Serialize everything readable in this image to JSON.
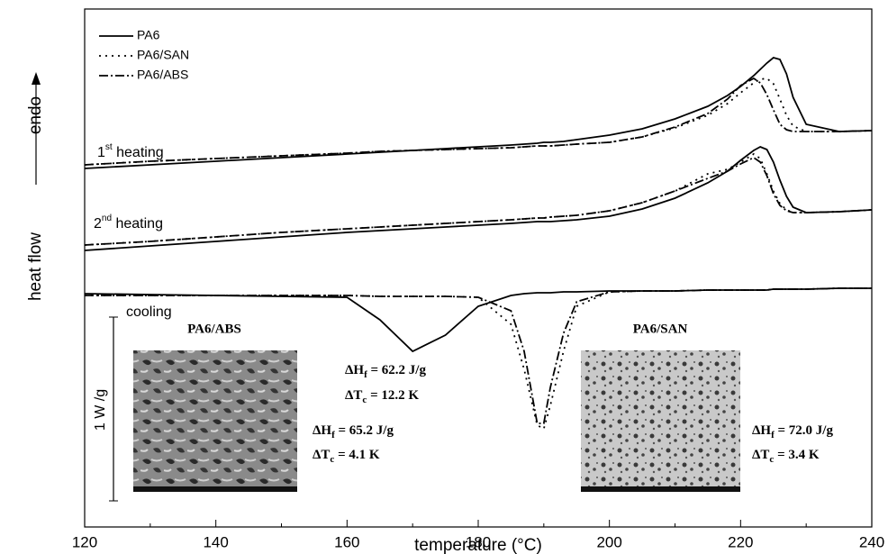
{
  "chart_data": {
    "type": "line",
    "xlabel": "temperature (°C)",
    "ylabel": "heat flow",
    "direction_label": "endo",
    "scale_label": "1 W /g",
    "xlim": [
      120,
      240
    ],
    "xticks": [
      120,
      140,
      160,
      180,
      200,
      220,
      240
    ],
    "xminorticks": [
      130,
      150,
      170,
      190,
      210,
      230
    ],
    "ylim": [
      0,
      2.875
    ],
    "x": [
      120,
      130,
      140,
      150,
      160,
      165,
      170,
      175,
      180,
      185,
      187,
      189,
      190,
      191,
      193,
      195,
      200,
      205,
      210,
      215,
      218,
      220,
      222,
      223,
      224,
      225,
      226,
      227,
      228,
      230,
      235,
      240
    ],
    "curve_labels": [
      {
        "main": "1",
        "sup": "st",
        "after": " heating"
      },
      {
        "main": "2",
        "sup": "nd",
        "after": " heating"
      },
      {
        "main": "cooling",
        "sup": "",
        "after": ""
      }
    ],
    "series": [
      {
        "name": "PA6",
        "color": "#000000",
        "dash": "solid",
        "curves": [
          [
            1.99,
            2.01,
            2.03,
            2.05,
            2.07,
            2.08,
            2.09,
            2.1,
            2.11,
            2.12,
            2.125,
            2.13,
            2.135,
            2.135,
            2.14,
            2.15,
            2.175,
            2.21,
            2.265,
            2.335,
            2.395,
            2.445,
            2.505,
            2.54,
            2.575,
            2.605,
            2.595,
            2.515,
            2.385,
            2.235,
            2.195,
            2.2
          ],
          [
            1.535,
            1.56,
            1.585,
            1.61,
            1.635,
            1.645,
            1.655,
            1.665,
            1.675,
            1.685,
            1.69,
            1.695,
            1.695,
            1.695,
            1.7,
            1.705,
            1.725,
            1.765,
            1.825,
            1.91,
            1.975,
            2.035,
            2.09,
            2.11,
            2.095,
            2.025,
            1.925,
            1.835,
            1.775,
            1.745,
            1.75,
            1.76
          ],
          [
            1.295,
            1.29,
            1.285,
            1.28,
            1.275,
            1.15,
            0.975,
            1.065,
            1.225,
            1.285,
            1.295,
            1.3,
            1.3,
            1.3,
            1.305,
            1.305,
            1.31,
            1.31,
            1.31,
            1.315,
            1.315,
            1.315,
            1.315,
            1.315,
            1.315,
            1.32,
            1.32,
            1.32,
            1.32,
            1.32,
            1.325,
            1.325
          ]
        ]
      },
      {
        "name": "PA6/SAN",
        "color": "#000000",
        "dash": "dot",
        "curves": [
          [
            2.01,
            2.03,
            2.045,
            2.06,
            2.075,
            2.085,
            2.09,
            2.095,
            2.1,
            2.105,
            2.11,
            2.115,
            2.115,
            2.115,
            2.12,
            2.125,
            2.135,
            2.165,
            2.215,
            2.285,
            2.35,
            2.41,
            2.465,
            2.485,
            2.49,
            2.46,
            2.375,
            2.285,
            2.225,
            2.195,
            2.195,
            2.2
          ],
          [
            1.565,
            1.585,
            1.61,
            1.635,
            1.655,
            1.665,
            1.675,
            1.685,
            1.695,
            1.705,
            1.71,
            1.715,
            1.715,
            1.72,
            1.725,
            1.73,
            1.755,
            1.8,
            1.865,
            1.96,
            1.985,
            2.025,
            2.07,
            2.045,
            1.96,
            1.865,
            1.795,
            1.76,
            1.745,
            1.745,
            1.75,
            1.76
          ],
          [
            1.285,
            1.285,
            1.285,
            1.285,
            1.285,
            1.28,
            1.28,
            1.28,
            1.275,
            1.125,
            0.875,
            0.565,
            0.545,
            0.675,
            0.975,
            1.225,
            1.305,
            1.31,
            1.31,
            1.315,
            1.315,
            1.315,
            1.315,
            1.315,
            1.315,
            1.32,
            1.32,
            1.32,
            1.32,
            1.32,
            1.325,
            1.325
          ]
        ]
      },
      {
        "name": "PA6/ABS",
        "color": "#000000",
        "dash": "dashdot",
        "curves": [
          [
            2.01,
            2.03,
            2.045,
            2.06,
            2.075,
            2.085,
            2.09,
            2.095,
            2.1,
            2.105,
            2.11,
            2.115,
            2.115,
            2.115,
            2.12,
            2.125,
            2.135,
            2.165,
            2.22,
            2.295,
            2.375,
            2.45,
            2.49,
            2.465,
            2.4,
            2.315,
            2.235,
            2.205,
            2.195,
            2.195,
            2.195,
            2.2
          ],
          [
            1.565,
            1.585,
            1.61,
            1.635,
            1.655,
            1.665,
            1.675,
            1.685,
            1.695,
            1.705,
            1.71,
            1.715,
            1.715,
            1.72,
            1.725,
            1.73,
            1.755,
            1.8,
            1.865,
            1.935,
            1.975,
            2.015,
            2.05,
            2.025,
            1.95,
            1.85,
            1.785,
            1.755,
            1.745,
            1.745,
            1.75,
            1.76
          ],
          [
            1.285,
            1.285,
            1.285,
            1.285,
            1.285,
            1.28,
            1.28,
            1.28,
            1.275,
            1.2,
            0.975,
            0.575,
            0.575,
            0.775,
            1.075,
            1.25,
            1.305,
            1.31,
            1.31,
            1.315,
            1.315,
            1.315,
            1.315,
            1.315,
            1.315,
            1.32,
            1.32,
            1.32,
            1.32,
            1.32,
            1.325,
            1.325
          ]
        ]
      }
    ],
    "insets": [
      "PA6/ABS",
      "PA6/SAN"
    ],
    "annotations": [
      {
        "sym": "ΔH",
        "sub": "f",
        "text": " = 62.2 J/g"
      },
      {
        "sym": "ΔT",
        "sub": "c",
        "text": " = 12.2 K"
      },
      {
        "sym": "ΔH",
        "sub": "f",
        "text": " = 65.2 J/g"
      },
      {
        "sym": "ΔT",
        "sub": "c",
        "text": " = 4.1 K"
      },
      {
        "sym": "ΔH",
        "sub": "f",
        "text": " = 72.0 J/g"
      },
      {
        "sym": "ΔT",
        "sub": "c",
        "text": " = 3.4 K"
      }
    ]
  }
}
